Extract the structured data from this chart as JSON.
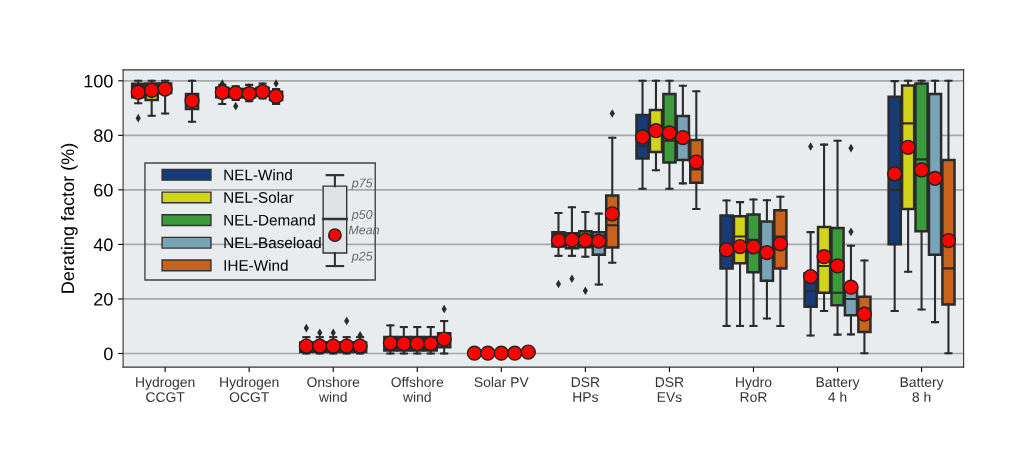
{
  "chart_data": {
    "type": "box",
    "ylabel": "Derating factor (%)",
    "categories": [
      "Hydrogen\nCCGT",
      "Hydrogen\nOCGT",
      "Onshore\nwind",
      "Offshore\nwind",
      "Solar PV",
      "DSR\nHPs",
      "DSR\nEVs",
      "Hydro\nRoR",
      "Battery\n4 h",
      "Battery\n8 h"
    ],
    "ylim": [
      -5,
      104
    ],
    "yticks": [
      0,
      20,
      40,
      60,
      80,
      100
    ],
    "grid": "y",
    "legend": "left",
    "annotations": [
      "p75",
      "p50",
      "Mean",
      "p25"
    ],
    "series": [
      {
        "name": "NEL-Wind",
        "color": "#173a78",
        "boxes": [
          {
            "low": 91.8,
            "q1": 94,
            "median": 97,
            "q3": 98.9,
            "high": 100,
            "mean": 95.8,
            "outliers": [
              86.3
            ]
          },
          {
            "low": 91.5,
            "q1": 94,
            "median": 96,
            "q3": 97.5,
            "high": 98.5,
            "mean": 95.8,
            "outliers": [
              99
            ]
          },
          {
            "low": 0,
            "q1": 0.5,
            "median": 2,
            "q3": 4,
            "high": 6,
            "mean": 2.7,
            "outliers": [
              9.3
            ]
          },
          {
            "low": 0,
            "q1": 1.1,
            "median": 3,
            "q3": 6,
            "high": 10.3,
            "mean": 3.8
          },
          {
            "low": 0,
            "q1": 0,
            "median": 0,
            "q3": 0.5,
            "high": 0.5,
            "mean": 0.1
          },
          {
            "low": 35.8,
            "q1": 39.2,
            "median": 42,
            "q3": 44.5,
            "high": 51.5,
            "mean": 41.4,
            "outliers": [
              25.5
            ]
          },
          {
            "low": 60.4,
            "q1": 71.5,
            "median": 76,
            "q3": 87.5,
            "high": 100,
            "mean": 79.4
          },
          {
            "low": 10.1,
            "q1": 31.2,
            "median": 39,
            "q3": 50.6,
            "high": 56.1,
            "mean": 38
          },
          {
            "low": 6.6,
            "q1": 17.1,
            "median": 22.9,
            "q3": 29.4,
            "high": 44.5,
            "mean": 28.2,
            "outliers": [
              75.9
            ]
          },
          {
            "low": 15.6,
            "q1": 40.1,
            "median": 60,
            "q3": 94.2,
            "high": 99.9,
            "mean": 65.9
          }
        ]
      },
      {
        "name": "NEL-Solar",
        "color": "#d2d41c",
        "boxes": [
          {
            "low": 87.2,
            "q1": 93,
            "median": 97,
            "q3": 99,
            "high": 100,
            "mean": 96.5
          },
          {
            "low": 93,
            "q1": 94,
            "median": 96,
            "q3": 97,
            "high": 98,
            "mean": 95.5,
            "outliers": [
              90.7
            ]
          },
          {
            "low": 0,
            "q1": 0.5,
            "median": 2,
            "q3": 4,
            "high": 6,
            "mean": 2.7,
            "outliers": [
              7.6
            ]
          },
          {
            "low": 0,
            "q1": 1.1,
            "median": 3,
            "q3": 6,
            "high": 9.7,
            "mean": 3.6
          },
          {
            "low": 0,
            "q1": 0,
            "median": 0,
            "q3": 0.5,
            "high": 0.5,
            "mean": 0.1
          },
          {
            "low": 35.8,
            "q1": 38.6,
            "median": 41,
            "q3": 44.1,
            "high": 53.6,
            "mean": 41.6,
            "outliers": [
              27.4
            ]
          },
          {
            "low": 67.2,
            "q1": 73.9,
            "median": 82,
            "q3": 89.3,
            "high": 100,
            "mean": 81.7
          },
          {
            "low": 10.1,
            "q1": 33.1,
            "median": 42.9,
            "q3": 50.3,
            "high": 55.5,
            "mean": 39.2
          },
          {
            "low": 15.6,
            "q1": 22.3,
            "median": 32.1,
            "q3": 46.4,
            "high": 76.6,
            "mean": 35.5
          },
          {
            "low": 30,
            "q1": 53,
            "median": 84.4,
            "q3": 98.3,
            "high": 100,
            "mean": 75.6
          }
        ]
      },
      {
        "name": "NEL-Demand",
        "color": "#3a9a3c",
        "boxes": [
          {
            "low": 88,
            "q1": 95.5,
            "median": 98,
            "q3": 99,
            "high": 100,
            "mean": 97
          },
          {
            "low": 92.5,
            "q1": 94,
            "median": 95.5,
            "q3": 97,
            "high": 98.5,
            "mean": 95.3
          },
          {
            "low": 0,
            "q1": 0.5,
            "median": 2,
            "q3": 4,
            "high": 6,
            "mean": 2.7,
            "outliers": [
              7.6
            ]
          },
          {
            "low": 0,
            "q1": 1.1,
            "median": 3,
            "q3": 6,
            "high": 9.7,
            "mean": 3.6
          },
          {
            "low": 0,
            "q1": 0,
            "median": 0,
            "q3": 0.5,
            "high": 0.5,
            "mean": 0.1
          },
          {
            "low": 35.5,
            "q1": 39,
            "median": 42,
            "q3": 44.8,
            "high": 51.9,
            "mean": 41.5,
            "outliers": [
              23
            ]
          },
          {
            "low": 60.4,
            "q1": 70,
            "median": 78,
            "q3": 95.2,
            "high": 100,
            "mean": 80.9
          },
          {
            "low": 10.1,
            "q1": 29.8,
            "median": 41.7,
            "q3": 51,
            "high": 56.5,
            "mean": 39.1
          },
          {
            "low": 6.9,
            "q1": 17.7,
            "median": 22.3,
            "q3": 46,
            "high": 78,
            "mean": 32.1
          },
          {
            "low": 16.1,
            "q1": 44.8,
            "median": 71.2,
            "q3": 99,
            "high": 100,
            "mean": 67.3
          }
        ]
      },
      {
        "name": "NEL-Baseload",
        "color": "#79a3b7",
        "boxes": [
          null,
          {
            "low": 93.5,
            "q1": 94.5,
            "median": 96,
            "q3": 97.5,
            "high": 99,
            "mean": 96
          },
          {
            "low": 0,
            "q1": 0.5,
            "median": 2,
            "q3": 4,
            "high": 6,
            "mean": 2.7,
            "outliers": [
              11.9
            ]
          },
          {
            "low": 0,
            "q1": 1.1,
            "median": 3,
            "q3": 6,
            "high": 9.7,
            "mean": 3.6
          },
          {
            "low": 0,
            "q1": 0,
            "median": 0,
            "q3": 0.5,
            "high": 0.5,
            "mean": 0.1
          },
          {
            "low": 25.3,
            "q1": 36.2,
            "median": 40,
            "q3": 44.5,
            "high": 51.3,
            "mean": 41.2
          },
          {
            "low": 62.4,
            "q1": 71,
            "median": 78,
            "q3": 87.1,
            "high": 98.2,
            "mean": 79.2
          },
          {
            "low": 12.8,
            "q1": 26.7,
            "median": 37,
            "q3": 48.4,
            "high": 56.2,
            "mean": 37
          },
          {
            "low": 7,
            "q1": 14,
            "median": 20,
            "q3": 24.5,
            "high": 39.5,
            "mean": 24.3,
            "outliers": [
              75.3,
              44.6
            ]
          },
          {
            "low": 11.5,
            "q1": 36.2,
            "median": 63,
            "q3": 95.2,
            "high": 100,
            "mean": 64.2
          }
        ]
      },
      {
        "name": "IHE-Wind",
        "color": "#c8621f",
        "boxes": [
          {
            "low": 85,
            "q1": 89.7,
            "median": 92,
            "q3": 95.2,
            "high": 100,
            "mean": 92.7
          },
          {
            "low": 91.5,
            "q1": 93,
            "median": 94,
            "q3": 96,
            "high": 97,
            "mean": 94.3,
            "outliers": [
              99
            ]
          },
          {
            "low": 0,
            "q1": 0.5,
            "median": 2,
            "q3": 4,
            "high": 6,
            "mean": 2.7,
            "outliers": [
              6.7
            ]
          },
          {
            "low": 0,
            "q1": 2.3,
            "median": 4,
            "q3": 7.4,
            "high": 11.9,
            "mean": 5.3,
            "outliers": [
              16.3
            ]
          },
          {
            "low": 0,
            "q1": 0,
            "median": 0.5,
            "q3": 1,
            "high": 1,
            "mean": 0.5
          },
          {
            "low": 33.3,
            "q1": 38.9,
            "median": 47,
            "q3": 57.9,
            "high": 79.1,
            "mean": 51.2,
            "outliers": [
              88
            ]
          },
          {
            "low": 53,
            "q1": 62.6,
            "median": 67.5,
            "q3": 78.3,
            "high": 96.2,
            "mean": 70.2
          },
          {
            "low": 10.1,
            "q1": 31.2,
            "median": 42.9,
            "q3": 52.5,
            "high": 57.5,
            "mean": 40.2
          },
          {
            "low": 0.1,
            "q1": 7.9,
            "median": 14,
            "q3": 20.8,
            "high": 34.1,
            "mean": 14.4
          },
          {
            "low": 0.1,
            "q1": 18,
            "median": 31.2,
            "q3": 71,
            "high": 100,
            "mean": 41.4
          }
        ]
      }
    ]
  }
}
